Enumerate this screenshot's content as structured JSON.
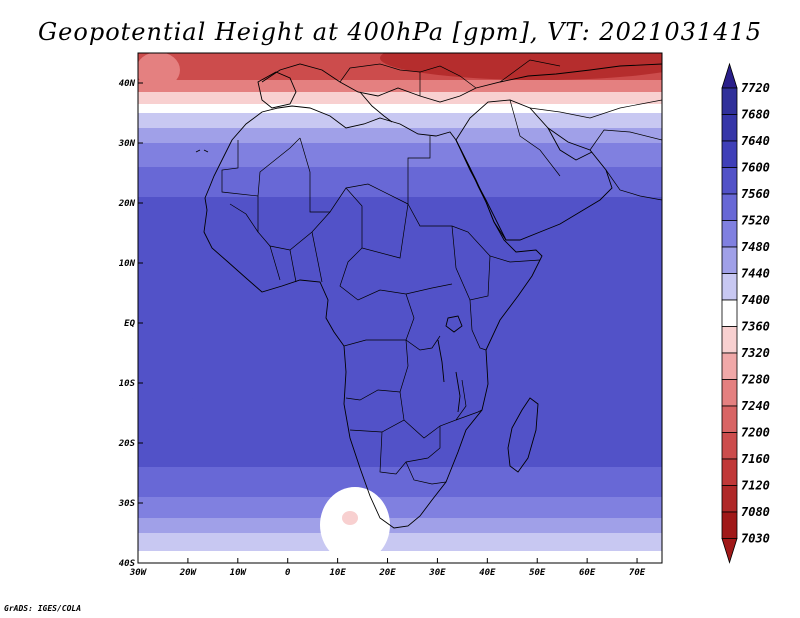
{
  "title": "Geopotential Height at 400hPa [gpm], VT: 2021031415",
  "credit": "GrADS: IGES/COLA",
  "map": {
    "projection": "latlon",
    "lon_range": [
      -30,
      75
    ],
    "lat_range": [
      -40,
      45
    ],
    "lon_ticks": [
      {
        "value": -30,
        "label": "30W"
      },
      {
        "value": -20,
        "label": "20W"
      },
      {
        "value": -10,
        "label": "10W"
      },
      {
        "value": 0,
        "label": "0"
      },
      {
        "value": 10,
        "label": "10E"
      },
      {
        "value": 20,
        "label": "20E"
      },
      {
        "value": 30,
        "label": "30E"
      },
      {
        "value": 40,
        "label": "40E"
      },
      {
        "value": 50,
        "label": "50E"
      },
      {
        "value": 60,
        "label": "60E"
      },
      {
        "value": 70,
        "label": "70E"
      }
    ],
    "lat_ticks": [
      {
        "value": 40,
        "label": "40N"
      },
      {
        "value": 30,
        "label": "30N"
      },
      {
        "value": 20,
        "label": "20N"
      },
      {
        "value": 10,
        "label": "10N"
      },
      {
        "value": 0,
        "label": "EQ"
      },
      {
        "value": -10,
        "label": "10S"
      },
      {
        "value": -20,
        "label": "20S"
      },
      {
        "value": -30,
        "label": "30S"
      },
      {
        "value": -40,
        "label": "40S"
      }
    ],
    "field_bands_by_latitude": [
      {
        "lat_from": 45,
        "lat_to": 40.5,
        "level": 7160
      },
      {
        "lat_from": 40.5,
        "lat_to": 38.5,
        "level": 7240
      },
      {
        "lat_from": 38.5,
        "lat_to": 36.5,
        "level": 7320
      },
      {
        "lat_from": 36.5,
        "lat_to": 35,
        "level": 7360
      },
      {
        "lat_from": 35,
        "lat_to": 32.5,
        "level": 7400
      },
      {
        "lat_from": 32.5,
        "lat_to": 30,
        "level": 7440
      },
      {
        "lat_from": 30,
        "lat_to": 26,
        "level": 7480
      },
      {
        "lat_from": 26,
        "lat_to": 21,
        "level": 7520
      },
      {
        "lat_from": 21,
        "lat_to": -24,
        "level": 7560
      },
      {
        "lat_from": -24,
        "lat_to": -29,
        "level": 7520
      },
      {
        "lat_from": -29,
        "lat_to": -32.5,
        "level": 7480
      },
      {
        "lat_from": -32.5,
        "lat_to": -35,
        "level": 7440
      },
      {
        "lat_from": -35,
        "lat_to": -38,
        "level": 7400
      },
      {
        "lat_from": -38,
        "lat_to": -40,
        "level": 7360
      }
    ]
  },
  "colorbar": {
    "levels": [
      "7720",
      "7680",
      "7640",
      "7600",
      "7560",
      "7520",
      "7480",
      "7440",
      "7400",
      "7360",
      "7320",
      "7280",
      "7240",
      "7200",
      "7160",
      "7120",
      "7080",
      "7030"
    ],
    "colors": [
      "#2b2b8c",
      "#30309a",
      "#3636a8",
      "#3f3fb8",
      "#5252c8",
      "#6868d6",
      "#8080e0",
      "#a0a0e8",
      "#c8c8f2",
      "#ffffff",
      "#f8d0d0",
      "#f0a8a8",
      "#e48080",
      "#d86464",
      "#cc4c4c",
      "#c03838",
      "#b02828",
      "#a01818",
      "#901010"
    ],
    "top_arrow_color": "#2a1f8a",
    "bottom_arrow_color": "#a01818"
  }
}
